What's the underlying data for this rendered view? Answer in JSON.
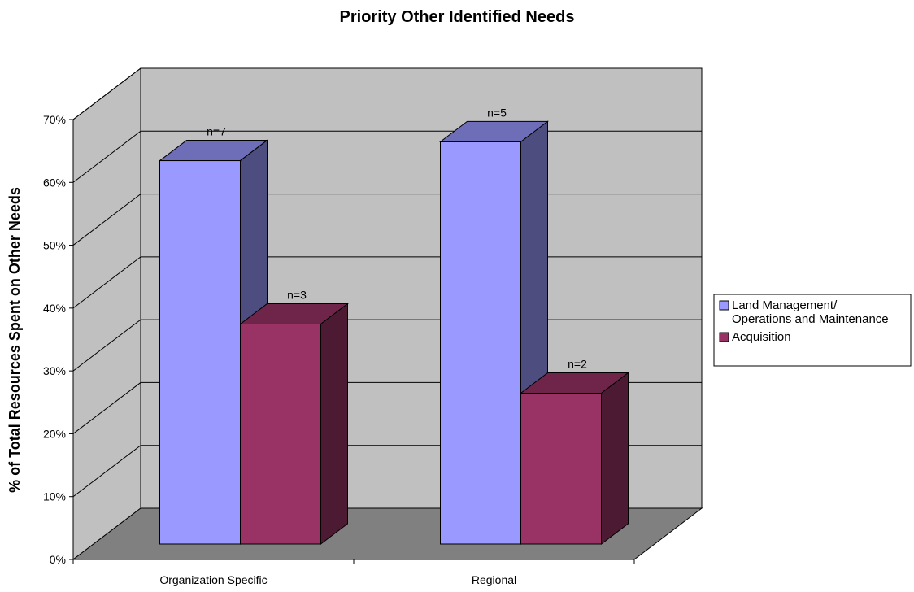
{
  "chart_data": {
    "type": "bar",
    "title": "Priority Other Identified Needs",
    "ylabel": "% of Total Resources Spent on Other Needs",
    "xlabel": "",
    "categories": [
      "Organization Specific",
      "Regional"
    ],
    "series": [
      {
        "name": "Land Management/ Operations and Maintenance",
        "legend_lines": [
          "Land Management/",
          "Operations and Maintenance"
        ],
        "values": [
          0.61,
          0.64
        ],
        "labels": [
          "n=7",
          "n=5"
        ],
        "color": "#9999ff"
      },
      {
        "name": "Acquisition",
        "legend_lines": [
          "Acquisition"
        ],
        "values": [
          0.35,
          0.24
        ],
        "labels": [
          "n=3",
          "n=2"
        ],
        "color": "#993366"
      }
    ],
    "ylim": [
      0,
      0.7
    ],
    "yticks": [
      "0%",
      "10%",
      "20%",
      "30%",
      "40%",
      "50%",
      "60%",
      "70%"
    ],
    "grid": true,
    "legend_position": "right",
    "style": "3d-column",
    "wall_color": "#c0c0c0",
    "floor_color": "#808080"
  }
}
